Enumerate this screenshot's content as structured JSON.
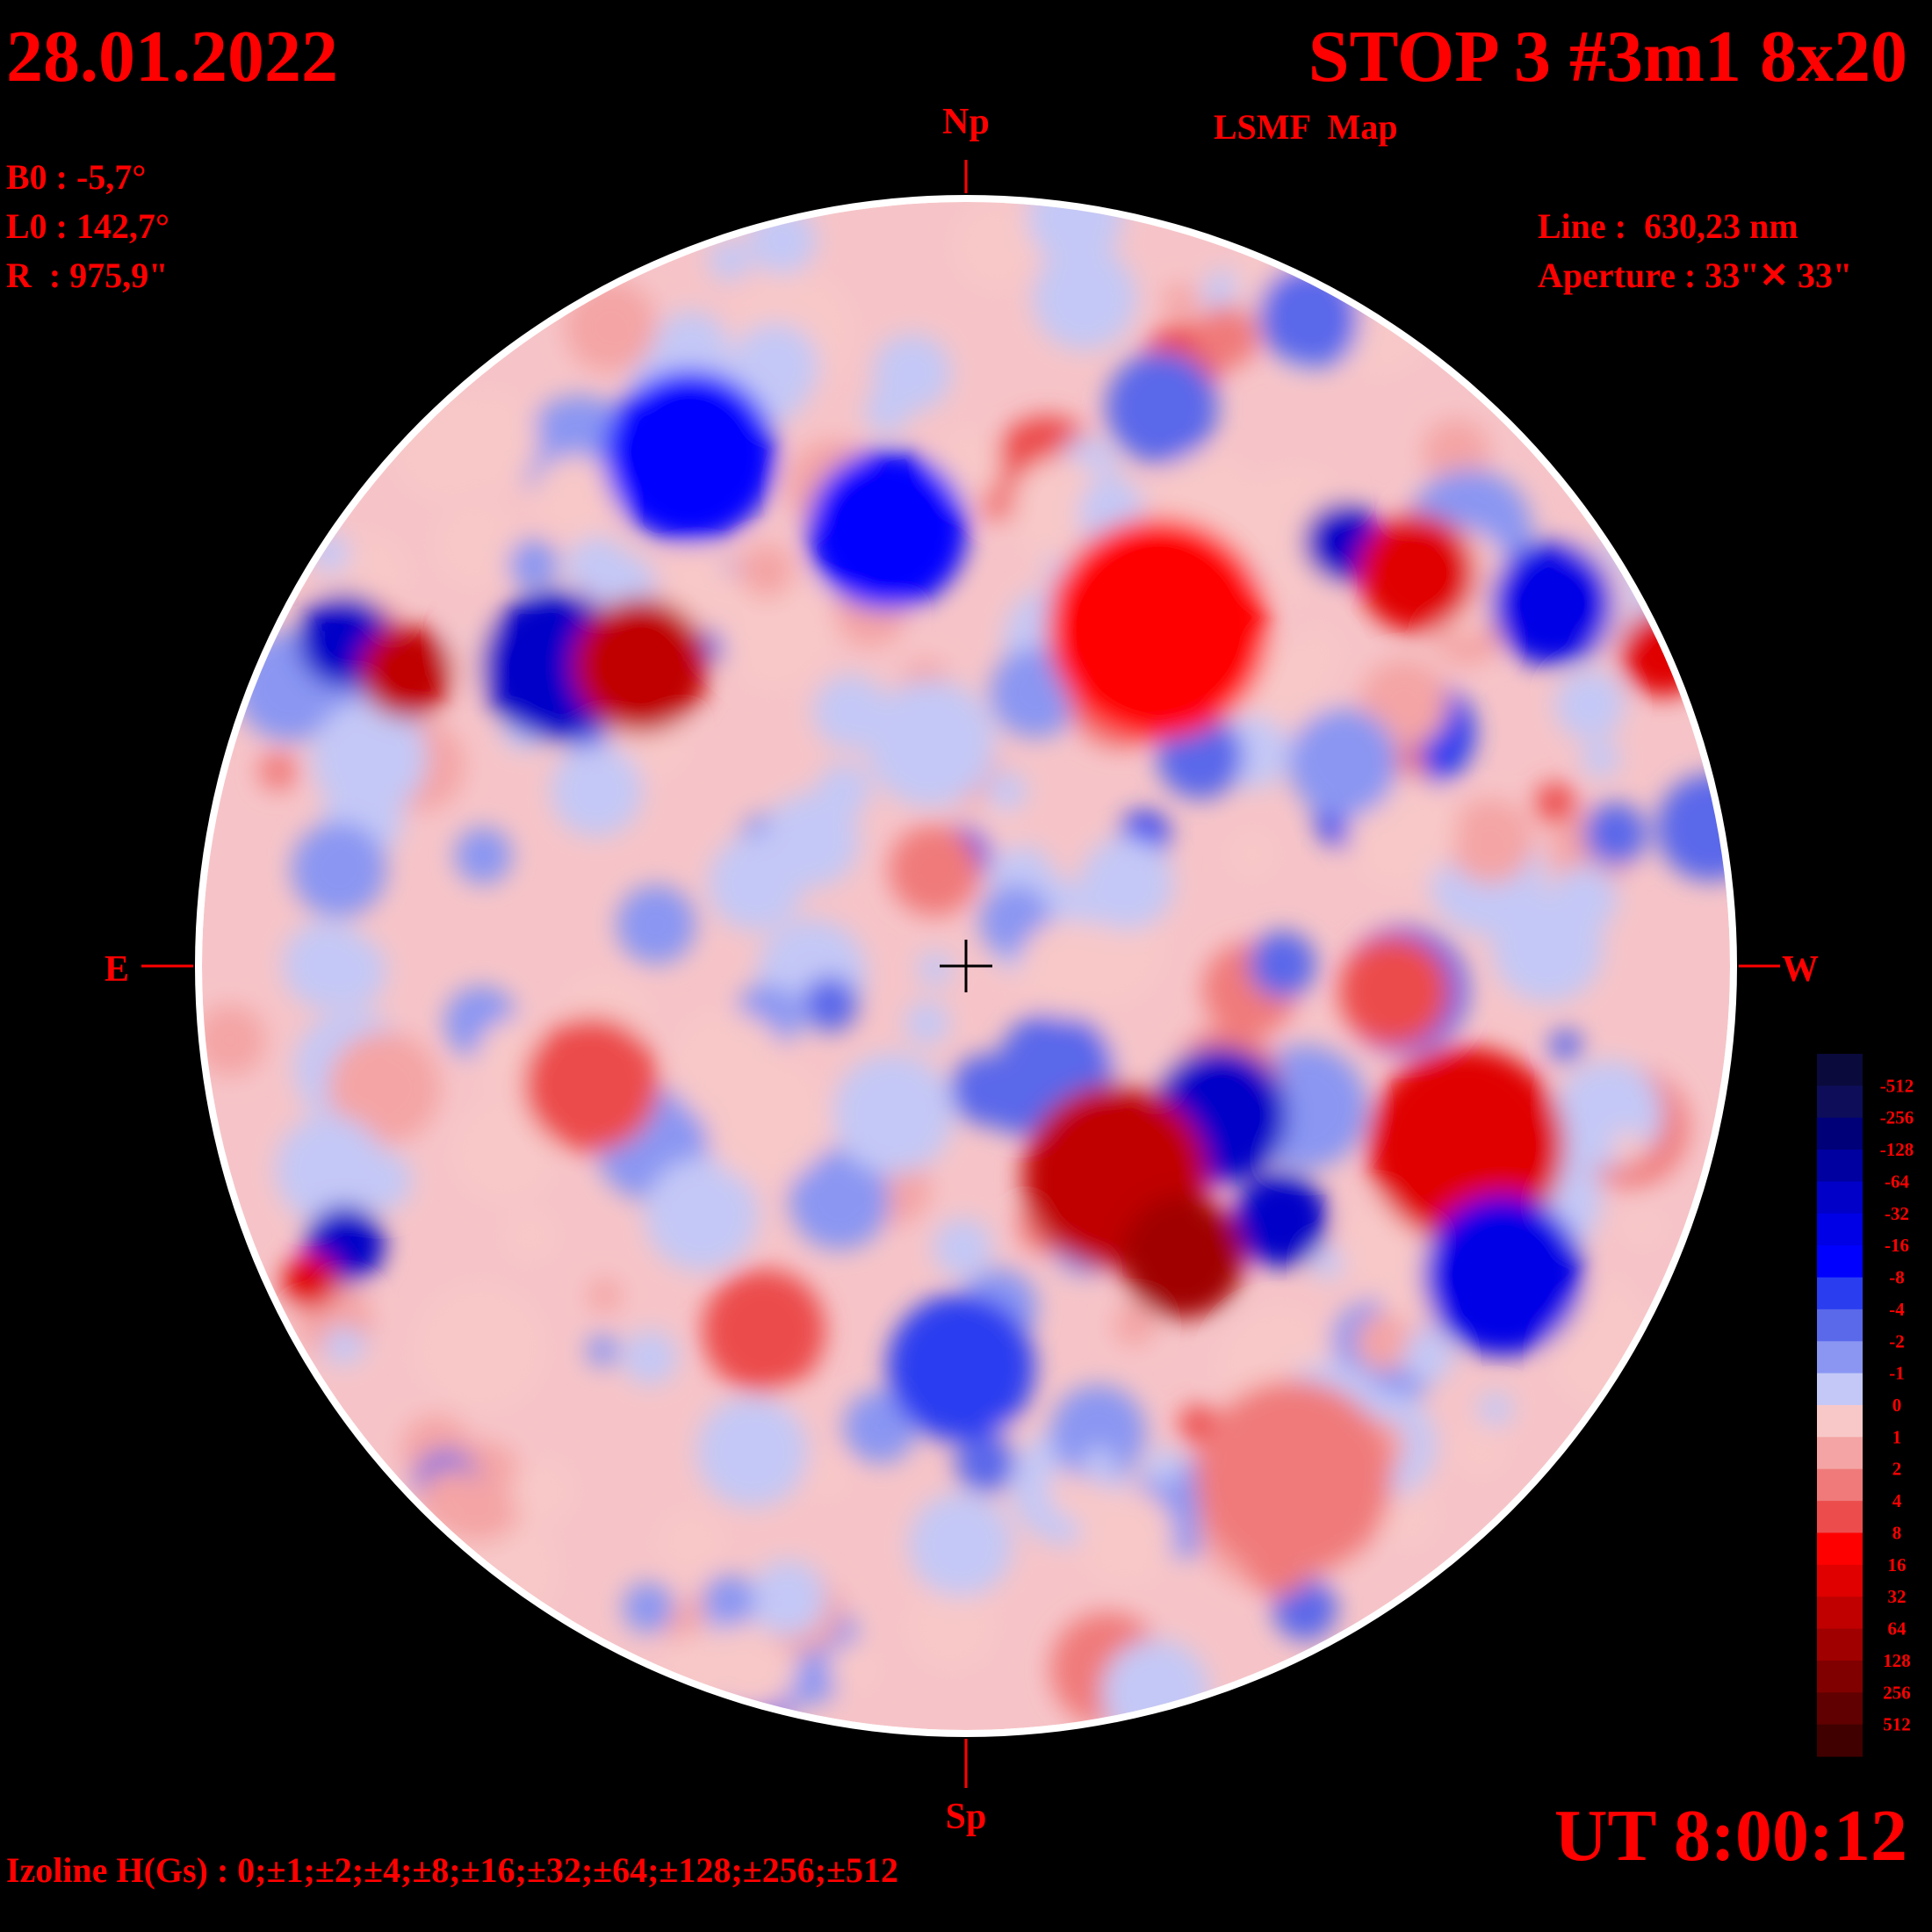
{
  "header": {
    "date": "28.01.2022",
    "title": "STOP 3 #3m1 8x20",
    "subtitle": "LSMF  Map"
  },
  "params": [
    "B0 : -5,7°",
    "L0 : 142,7°",
    "R  : 975,9\""
  ],
  "instrument": [
    "Line :  630,23 nm",
    "Aperture : 33\"✕ 33\""
  ],
  "directions": {
    "north": "Np",
    "south": "Sp",
    "east": "E",
    "west": "W"
  },
  "colorbar": {
    "labels": [
      "-512",
      "-256",
      "-128",
      "-64",
      "-32",
      "-16",
      "-8",
      "-4",
      "-2",
      "-1",
      "0",
      "1",
      "2",
      "4",
      "8",
      "16",
      "32",
      "64",
      "128",
      "256",
      "512"
    ],
    "colors": [
      "#0a0a3c",
      "#0d0d5a",
      "#000078",
      "#0000a0",
      "#0000c8",
      "#0000e6",
      "#0000ff",
      "#2a3ef0",
      "#5a68ea",
      "#8a96f2",
      "#c4c8f6",
      "#f8c8c8",
      "#f4a4a4",
      "#f07a7a",
      "#ec4c4c",
      "#ff0000",
      "#e00000",
      "#c00000",
      "#a00000",
      "#800000",
      "#600000",
      "#400000"
    ]
  },
  "time": "UT 8:00:12",
  "isolines": "Izoline H(Gs) : 0;±1;±2;±4;±8;±16;±32;±64;±128;±256;±512"
}
